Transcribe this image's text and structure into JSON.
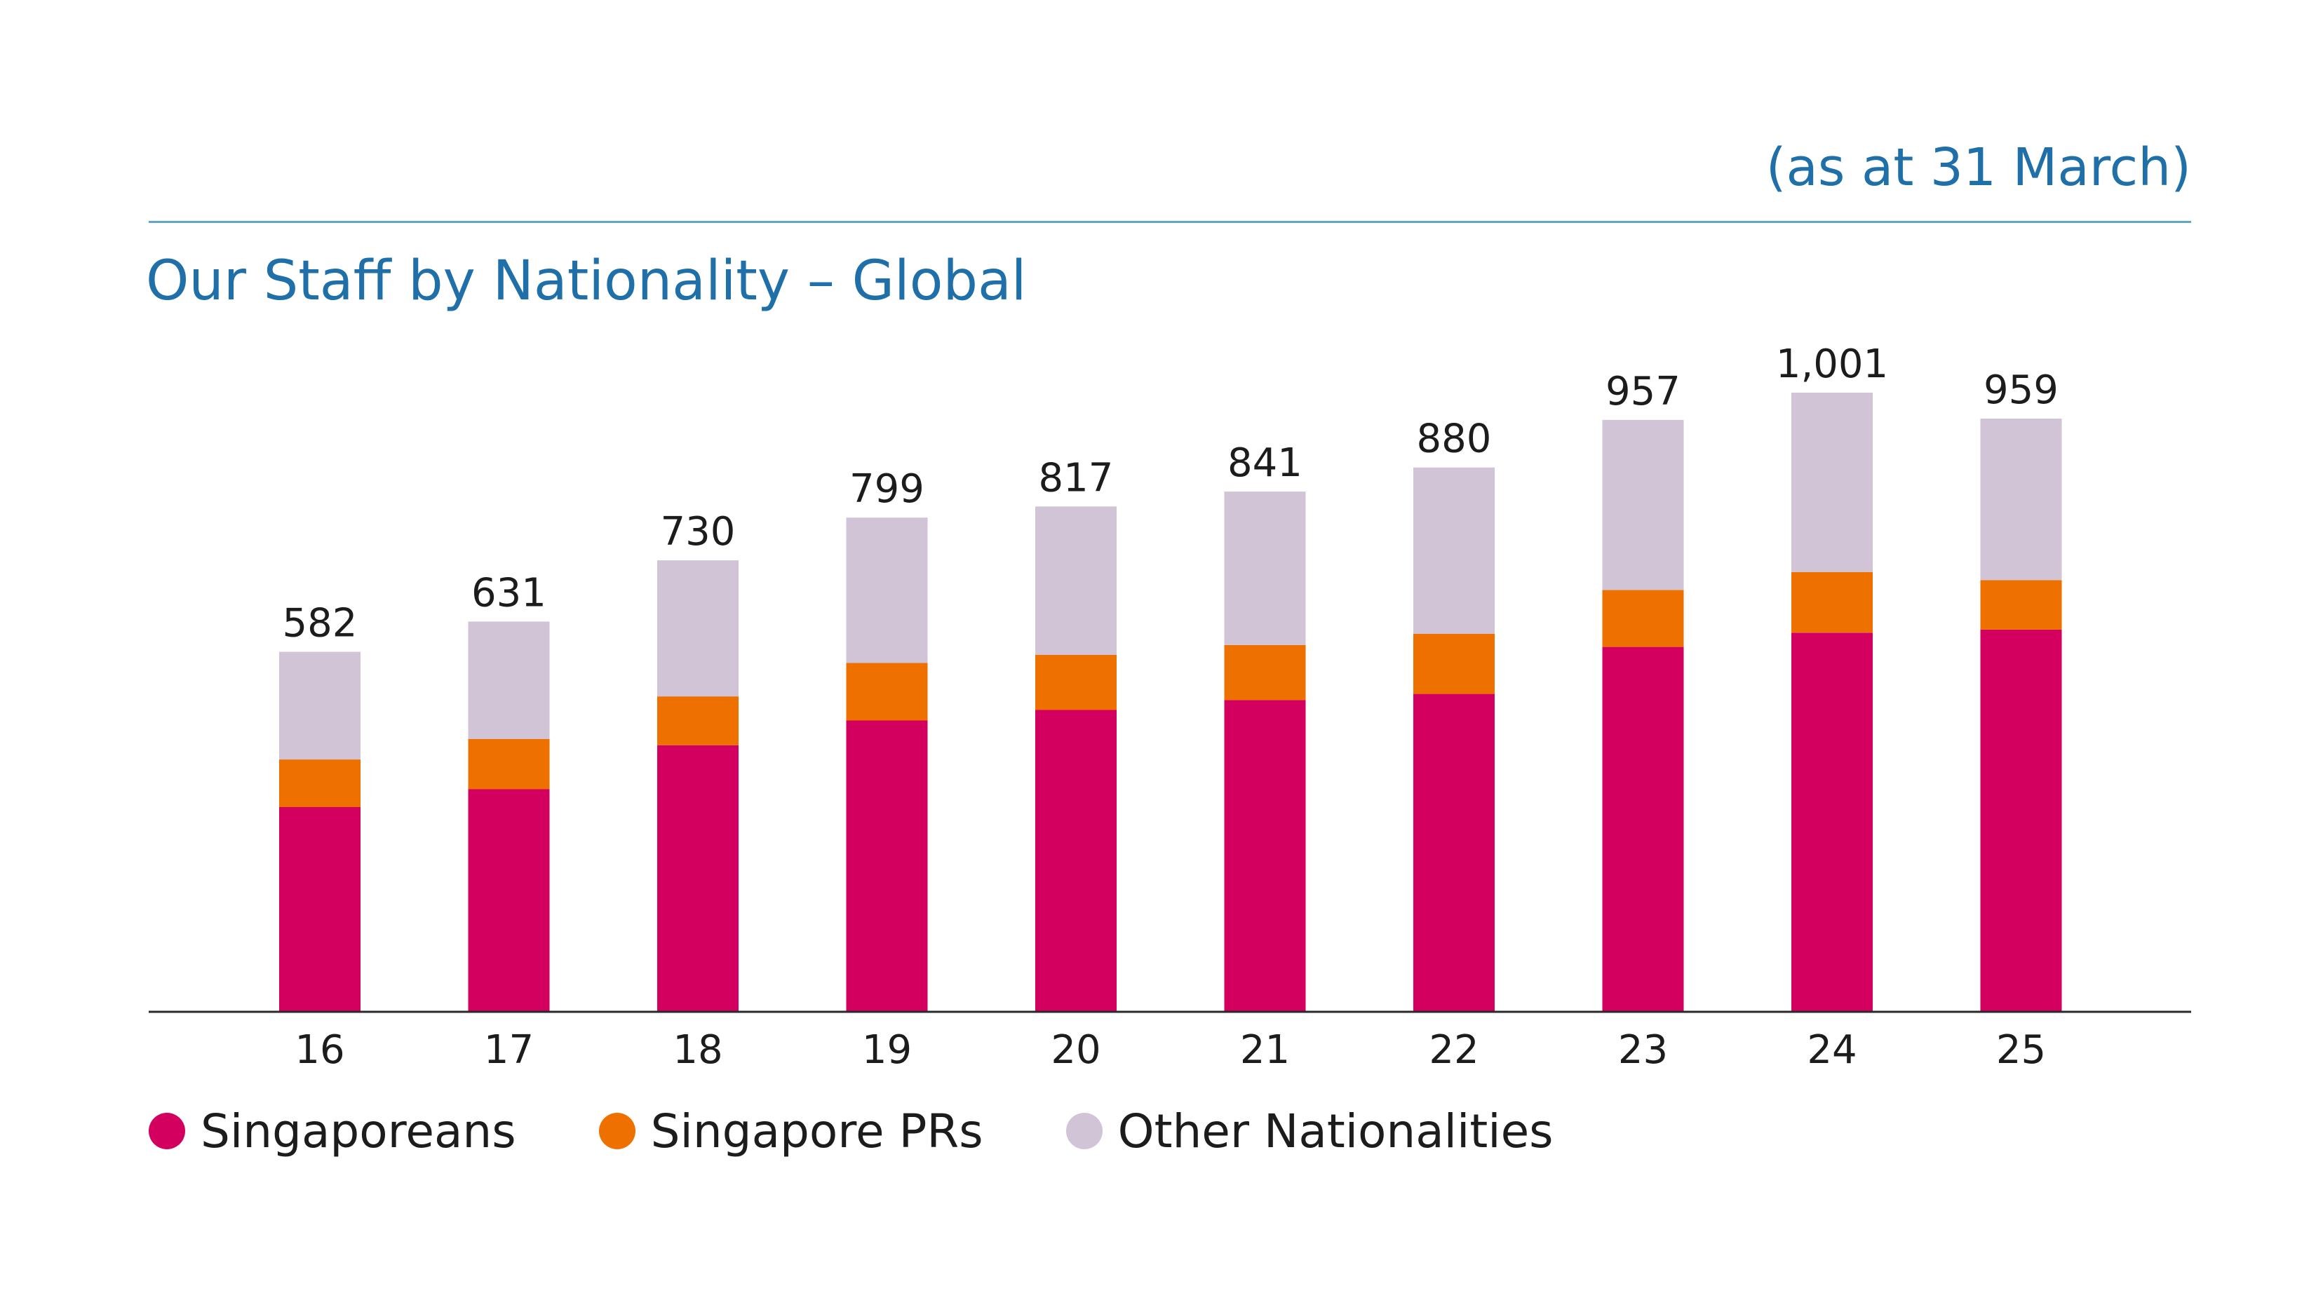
{
  "header": {
    "as_at": "(as at 31 March)",
    "title": "Our Staff by Nationality – Global"
  },
  "colors": {
    "accent": "#1f6fa8",
    "rule": "#5fa8c8",
    "singaporeans": "#d4005f",
    "singapore_prs": "#ee7100",
    "other_nationalities": "#d1c4d6",
    "axis": "#2a2a2a",
    "text": "#1c1c1c"
  },
  "legend": [
    {
      "label": "Singaporeans",
      "color": "#d4005f"
    },
    {
      "label": "Singapore PRs",
      "color": "#ee7100"
    },
    {
      "label": "Other Nationalities",
      "color": "#d1c4d6"
    }
  ],
  "chart_data": {
    "type": "bar",
    "stacked": true,
    "title": "Our Staff by Nationality – Global",
    "subtitle": "(as at 31 March)",
    "categories": [
      "16",
      "17",
      "18",
      "19",
      "20",
      "21",
      "22",
      "23",
      "24",
      "25"
    ],
    "totals": [
      582,
      631,
      730,
      799,
      817,
      841,
      880,
      957,
      1001,
      959
    ],
    "total_labels": [
      "582",
      "631",
      "730",
      "799",
      "817",
      "841",
      "880",
      "957",
      "1,001",
      "959"
    ],
    "series": [
      {
        "name": "Singaporeans",
        "color": "#d4005f",
        "values": [
          331,
          360,
          431,
          471,
          488,
          504,
          514,
          590,
          613,
          618
        ]
      },
      {
        "name": "Singapore PRs",
        "color": "#ee7100",
        "values": [
          77,
          81,
          79,
          93,
          89,
          89,
          97,
          92,
          98,
          80
        ]
      },
      {
        "name": "Other Nationalities",
        "color": "#d1c4d6",
        "values": [
          174,
          190,
          220,
          235,
          240,
          248,
          269,
          275,
          290,
          261
        ]
      }
    ],
    "ylim": [
      0,
      1001
    ],
    "grid": false,
    "legend_position": "bottom-left"
  }
}
